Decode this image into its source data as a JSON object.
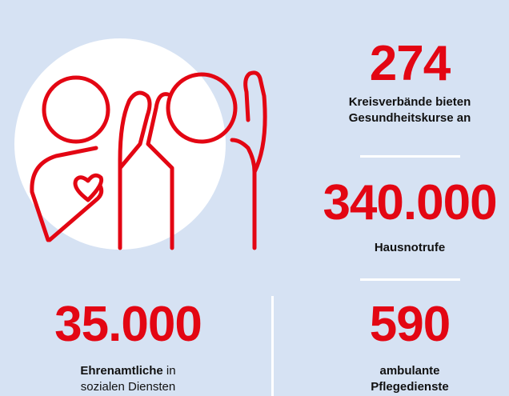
{
  "stats": [
    {
      "number": "274",
      "label": [
        [
          "Kreisverbände bieten"
        ],
        [
          "Gesundheitskurse an"
        ]
      ]
    },
    {
      "number": "340.000",
      "label": [
        [
          "Hausnotrufe"
        ]
      ]
    },
    {
      "number": "35.000",
      "label": [
        [
          "Ehrenamtliche",
          " in"
        ],
        [
          "sozialen Diensten"
        ]
      ]
    },
    {
      "number": "590",
      "label": [
        [
          "ambulante"
        ],
        [
          "Pflegedienste"
        ]
      ]
    }
  ]
}
